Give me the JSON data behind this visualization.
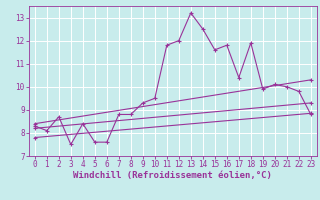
{
  "xlabel": "Windchill (Refroidissement éolien,°C)",
  "background_color": "#c8ecec",
  "line_color": "#993399",
  "xlim": [
    -0.5,
    23.5
  ],
  "ylim": [
    7,
    13.5
  ],
  "yticks": [
    7,
    8,
    9,
    10,
    11,
    12,
    13
  ],
  "xticks": [
    0,
    1,
    2,
    3,
    4,
    5,
    6,
    7,
    8,
    9,
    10,
    11,
    12,
    13,
    14,
    15,
    16,
    17,
    18,
    19,
    20,
    21,
    22,
    23
  ],
  "series1_x": [
    0,
    1,
    2,
    3,
    4,
    5,
    6,
    7,
    8,
    9,
    10,
    11,
    12,
    13,
    14,
    15,
    16,
    17,
    18,
    19,
    20,
    21,
    22,
    23
  ],
  "series1_y": [
    8.3,
    8.1,
    8.7,
    7.5,
    8.4,
    7.6,
    7.6,
    8.8,
    8.8,
    9.3,
    9.5,
    11.8,
    12.0,
    13.2,
    12.5,
    11.6,
    11.8,
    10.4,
    11.9,
    9.9,
    10.1,
    10.0,
    9.8,
    8.8
  ],
  "series2_x": [
    0,
    23
  ],
  "series2_y": [
    8.4,
    10.3
  ],
  "series3_x": [
    0,
    23
  ],
  "series3_y": [
    8.2,
    9.3
  ],
  "series4_x": [
    0,
    23
  ],
  "series4_y": [
    7.8,
    8.85
  ],
  "grid_color": "#ffffff",
  "xlabel_fontsize": 6.5,
  "tick_fontsize": 5.5
}
